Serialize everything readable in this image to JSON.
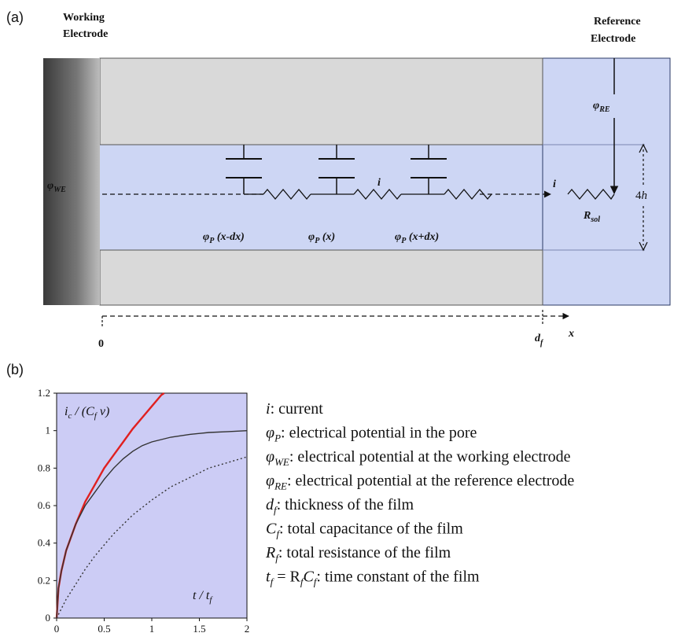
{
  "panel_a": {
    "label": "(a)",
    "working_electrode": [
      "Working",
      "Electrode"
    ],
    "reference_electrode": [
      "Reference",
      "Electrode"
    ],
    "phi_re": "φ",
    "phi_re_sub": "RE",
    "phi_we": "φ",
    "phi_we_sub": "WE",
    "current_1": "i",
    "current_2": "i",
    "height_label": "4",
    "height_label_var": "h",
    "r_sol": "R",
    "r_sol_sub": "sol",
    "phi_p_left": [
      "φ",
      "P",
      " (x-dx)"
    ],
    "phi_p_mid": [
      "φ",
      "P",
      " (x)"
    ],
    "phi_p_right": [
      "φ",
      "P",
      " (x+dx)"
    ],
    "axis_origin": "0",
    "axis_df": "d",
    "axis_df_sub": "f",
    "axis_x": "x",
    "colors": {
      "electrode_gray": "#555555",
      "film_gray": "#d9d9d9",
      "pore_blue": "#cdd6f4"
    }
  },
  "panel_b": {
    "label": "(b)",
    "chart_data": {
      "type": "line",
      "ylabel_parts": [
        "i",
        "c",
        " / (C",
        "f",
        " v)"
      ],
      "xlabel_parts": [
        "t / t",
        "f"
      ],
      "xlim": [
        0,
        2
      ],
      "ylim": [
        0,
        1.2
      ],
      "x_ticks": [
        "0",
        "0.5",
        "1",
        "1.5",
        "2"
      ],
      "y_ticks": [
        "0",
        "0.2",
        "0.4",
        "0.6",
        "0.8",
        "1",
        "1.2"
      ],
      "background": "#ccccf5",
      "series": [
        {
          "style": "solid",
          "color": "#e02020",
          "x": [
            0,
            0.02,
            0.05,
            0.1,
            0.2,
            0.3,
            0.4,
            0.5,
            0.6,
            0.7,
            0.8,
            0.9,
            1.0,
            1.1,
            1.13
          ],
          "y": [
            0,
            0.16,
            0.25,
            0.36,
            0.5,
            0.62,
            0.71,
            0.8,
            0.87,
            0.94,
            1.01,
            1.07,
            1.13,
            1.19,
            1.2
          ]
        },
        {
          "style": "solid",
          "color": "#333333",
          "x": [
            0,
            0.02,
            0.05,
            0.1,
            0.2,
            0.3,
            0.4,
            0.5,
            0.6,
            0.7,
            0.8,
            0.9,
            1.0,
            1.2,
            1.4,
            1.6,
            1.8,
            2.0
          ],
          "y": [
            0,
            0.16,
            0.25,
            0.36,
            0.5,
            0.6,
            0.67,
            0.74,
            0.8,
            0.85,
            0.89,
            0.92,
            0.94,
            0.965,
            0.98,
            0.99,
            0.995,
            1.0
          ]
        },
        {
          "style": "dotted",
          "color": "#333333",
          "x": [
            0,
            0.1,
            0.2,
            0.3,
            0.4,
            0.5,
            0.6,
            0.8,
            1.0,
            1.2,
            1.4,
            1.6,
            1.8,
            2.0
          ],
          "y": [
            0,
            0.1,
            0.18,
            0.26,
            0.33,
            0.39,
            0.45,
            0.55,
            0.63,
            0.7,
            0.75,
            0.8,
            0.83,
            0.86
          ]
        }
      ]
    },
    "legend": [
      {
        "sym": "i",
        "sub": "",
        "text": ": current"
      },
      {
        "sym": "φ",
        "sub": "P",
        "text": ": electrical potential in the pore"
      },
      {
        "sym": "φ",
        "sub": "WE",
        "text": ": electrical potential at  the working electrode"
      },
      {
        "sym": "φ",
        "sub": "RE",
        "text": ": electrical potential at  the reference electrode"
      },
      {
        "sym": "d",
        "sub": "f",
        "text": ": thickness of the film"
      },
      {
        "sym": "C",
        "sub": "f",
        "text": ": total capacitance of the film"
      },
      {
        "sym": "R",
        "sub": "f",
        "text": ": total resistance of the film"
      },
      {
        "sym": "t",
        "sub": "f",
        "text": " = R",
        "sub2": "f",
        "text2": "C",
        "sub3": "f",
        "text3": ": time constant of the film"
      }
    ]
  }
}
